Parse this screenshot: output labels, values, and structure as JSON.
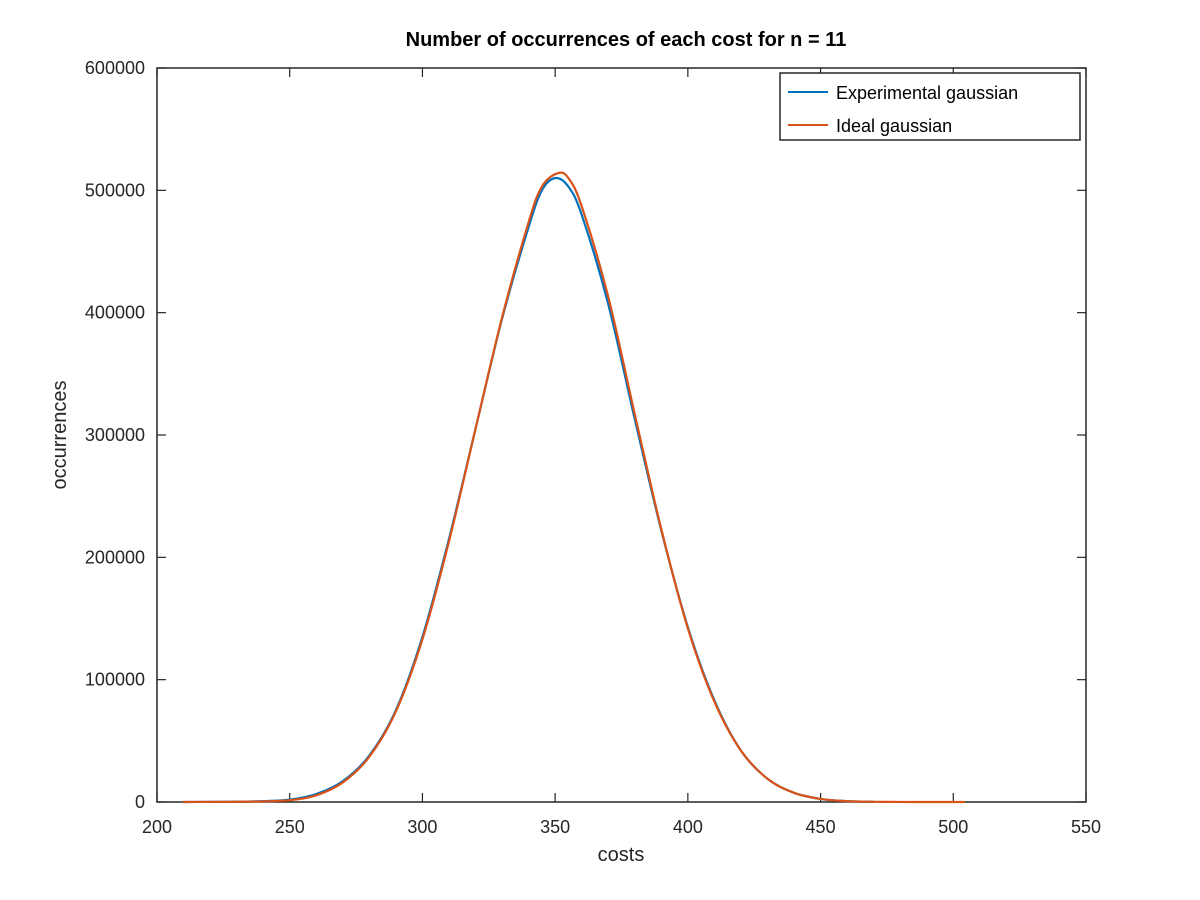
{
  "chart_data": {
    "type": "line",
    "title": "Number of occurrences of each cost for n = 11",
    "xlabel": "costs",
    "ylabel": "occurrences",
    "xlim": [
      200,
      550
    ],
    "ylim": [
      0,
      600000
    ],
    "xticks": [
      200,
      250,
      300,
      350,
      400,
      450,
      500,
      550
    ],
    "yticks": [
      0,
      100000,
      200000,
      300000,
      400000,
      500000,
      600000
    ],
    "xtick_labels": [
      "200",
      "250",
      "300",
      "350",
      "400",
      "450",
      "500",
      "550"
    ],
    "ytick_labels": [
      "0",
      "100000",
      "200000",
      "300000",
      "400000",
      "500000",
      "600000"
    ],
    "grid": false,
    "legend_position": "top-right",
    "series": [
      {
        "name": "Experimental gaussian",
        "color": "#0072bd",
        "x": [
          210,
          235,
          250,
          260,
          270,
          280,
          290,
          300,
          310,
          320,
          330,
          340,
          345,
          350,
          355,
          360,
          370,
          380,
          390,
          400,
          410,
          420,
          430,
          440,
          450,
          460,
          470
        ],
        "y": [
          0,
          400,
          2000,
          6500,
          17000,
          38000,
          75000,
          135000,
          215000,
          305000,
          395000,
          470000,
          500000,
          510000,
          503000,
          480000,
          407000,
          313000,
          222000,
          143000,
          83000,
          42000,
          19000,
          7500,
          2500,
          700,
          150
        ]
      },
      {
        "name": "Ideal gaussian",
        "color": "#d95319",
        "x": [
          210,
          235,
          250,
          260,
          270,
          280,
          290,
          300,
          310,
          320,
          330,
          340,
          345,
          351,
          355,
          360,
          370,
          380,
          390,
          400,
          410,
          420,
          430,
          440,
          450,
          460,
          470,
          480,
          490,
          504
        ],
        "y": [
          0,
          300,
          1500,
          5500,
          16000,
          37000,
          74000,
          133000,
          213000,
          305000,
          396000,
          474000,
          503000,
          514000,
          510000,
          487000,
          413000,
          317000,
          223000,
          142000,
          82000,
          42000,
          19000,
          7500,
          2500,
          700,
          150,
          30,
          5,
          0
        ]
      }
    ]
  }
}
